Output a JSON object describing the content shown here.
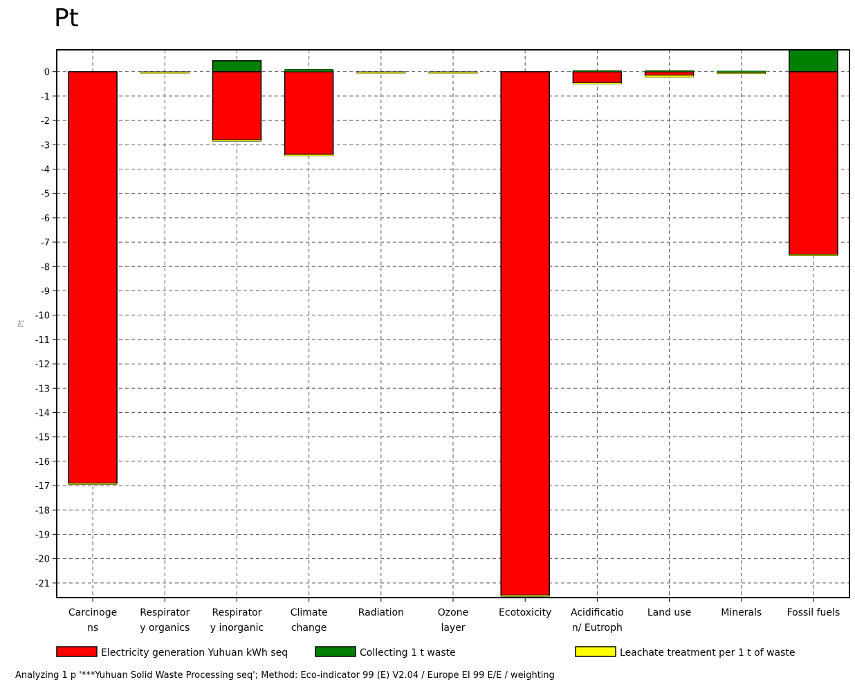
{
  "title": "Pt",
  "chart_data": {
    "type": "bar",
    "stacked": true,
    "ylabel": "Pt",
    "ylim": [
      -21.6,
      0.9
    ],
    "yticks": [
      0,
      -1,
      -2,
      -3,
      -4,
      -5,
      -6,
      -7,
      -8,
      -9,
      -10,
      -11,
      -12,
      -13,
      -14,
      -15,
      -16,
      -17,
      -18,
      -19,
      -20,
      -21
    ],
    "ytick_labels": [
      "0",
      "-1",
      "-2",
      "-3",
      "-4",
      "-5",
      "-6",
      "-7",
      "-8",
      "-9",
      "-10",
      "-11",
      "-12",
      "-13",
      "-14",
      "-15",
      "-16",
      "-17",
      "-18",
      "-19",
      "-20",
      "-21"
    ],
    "grid": true,
    "legend_position": "bottom",
    "categories": [
      [
        "Carcinoge",
        "ns"
      ],
      [
        "Respirator",
        "y organics"
      ],
      [
        "Respirator",
        "y inorganic"
      ],
      [
        "Climate",
        "change"
      ],
      [
        "Radiation"
      ],
      [
        "Ozone",
        "layer"
      ],
      [
        "Ecotoxicity"
      ],
      [
        "Acidificatio",
        "n/ Eutroph"
      ],
      [
        "Land use"
      ],
      [
        "Minerals"
      ],
      [
        "Fossil fuels"
      ]
    ],
    "series": [
      {
        "name": "Electricity generation Yuhuan kWh seq",
        "color": "#ff0000",
        "values": [
          -16.9,
          -0.01,
          -2.8,
          -3.4,
          -0.01,
          -0.01,
          -21.5,
          -0.45,
          -0.15,
          -0.03,
          -7.5
        ]
      },
      {
        "name": "Collecting 1 t waste",
        "color": "#008000",
        "values": [
          0.0,
          0.0,
          0.45,
          0.1,
          0.0,
          0.0,
          0.0,
          0.05,
          0.05,
          0.03,
          0.9
        ]
      },
      {
        "name": "Leachate treatment per 1 t of waste",
        "color": "#ffff00",
        "values": [
          -0.02,
          -0.03,
          -0.02,
          -0.06,
          -0.03,
          -0.03,
          -0.02,
          -0.03,
          -0.08,
          -0.03,
          -0.06
        ]
      }
    ],
    "footer": "Analyzing 1 p '***Yuhuan Solid Waste Processing seq'; Method: Eco-indicator 99 (E) V2.04 / Europe EI 99 E/E / weighting"
  }
}
